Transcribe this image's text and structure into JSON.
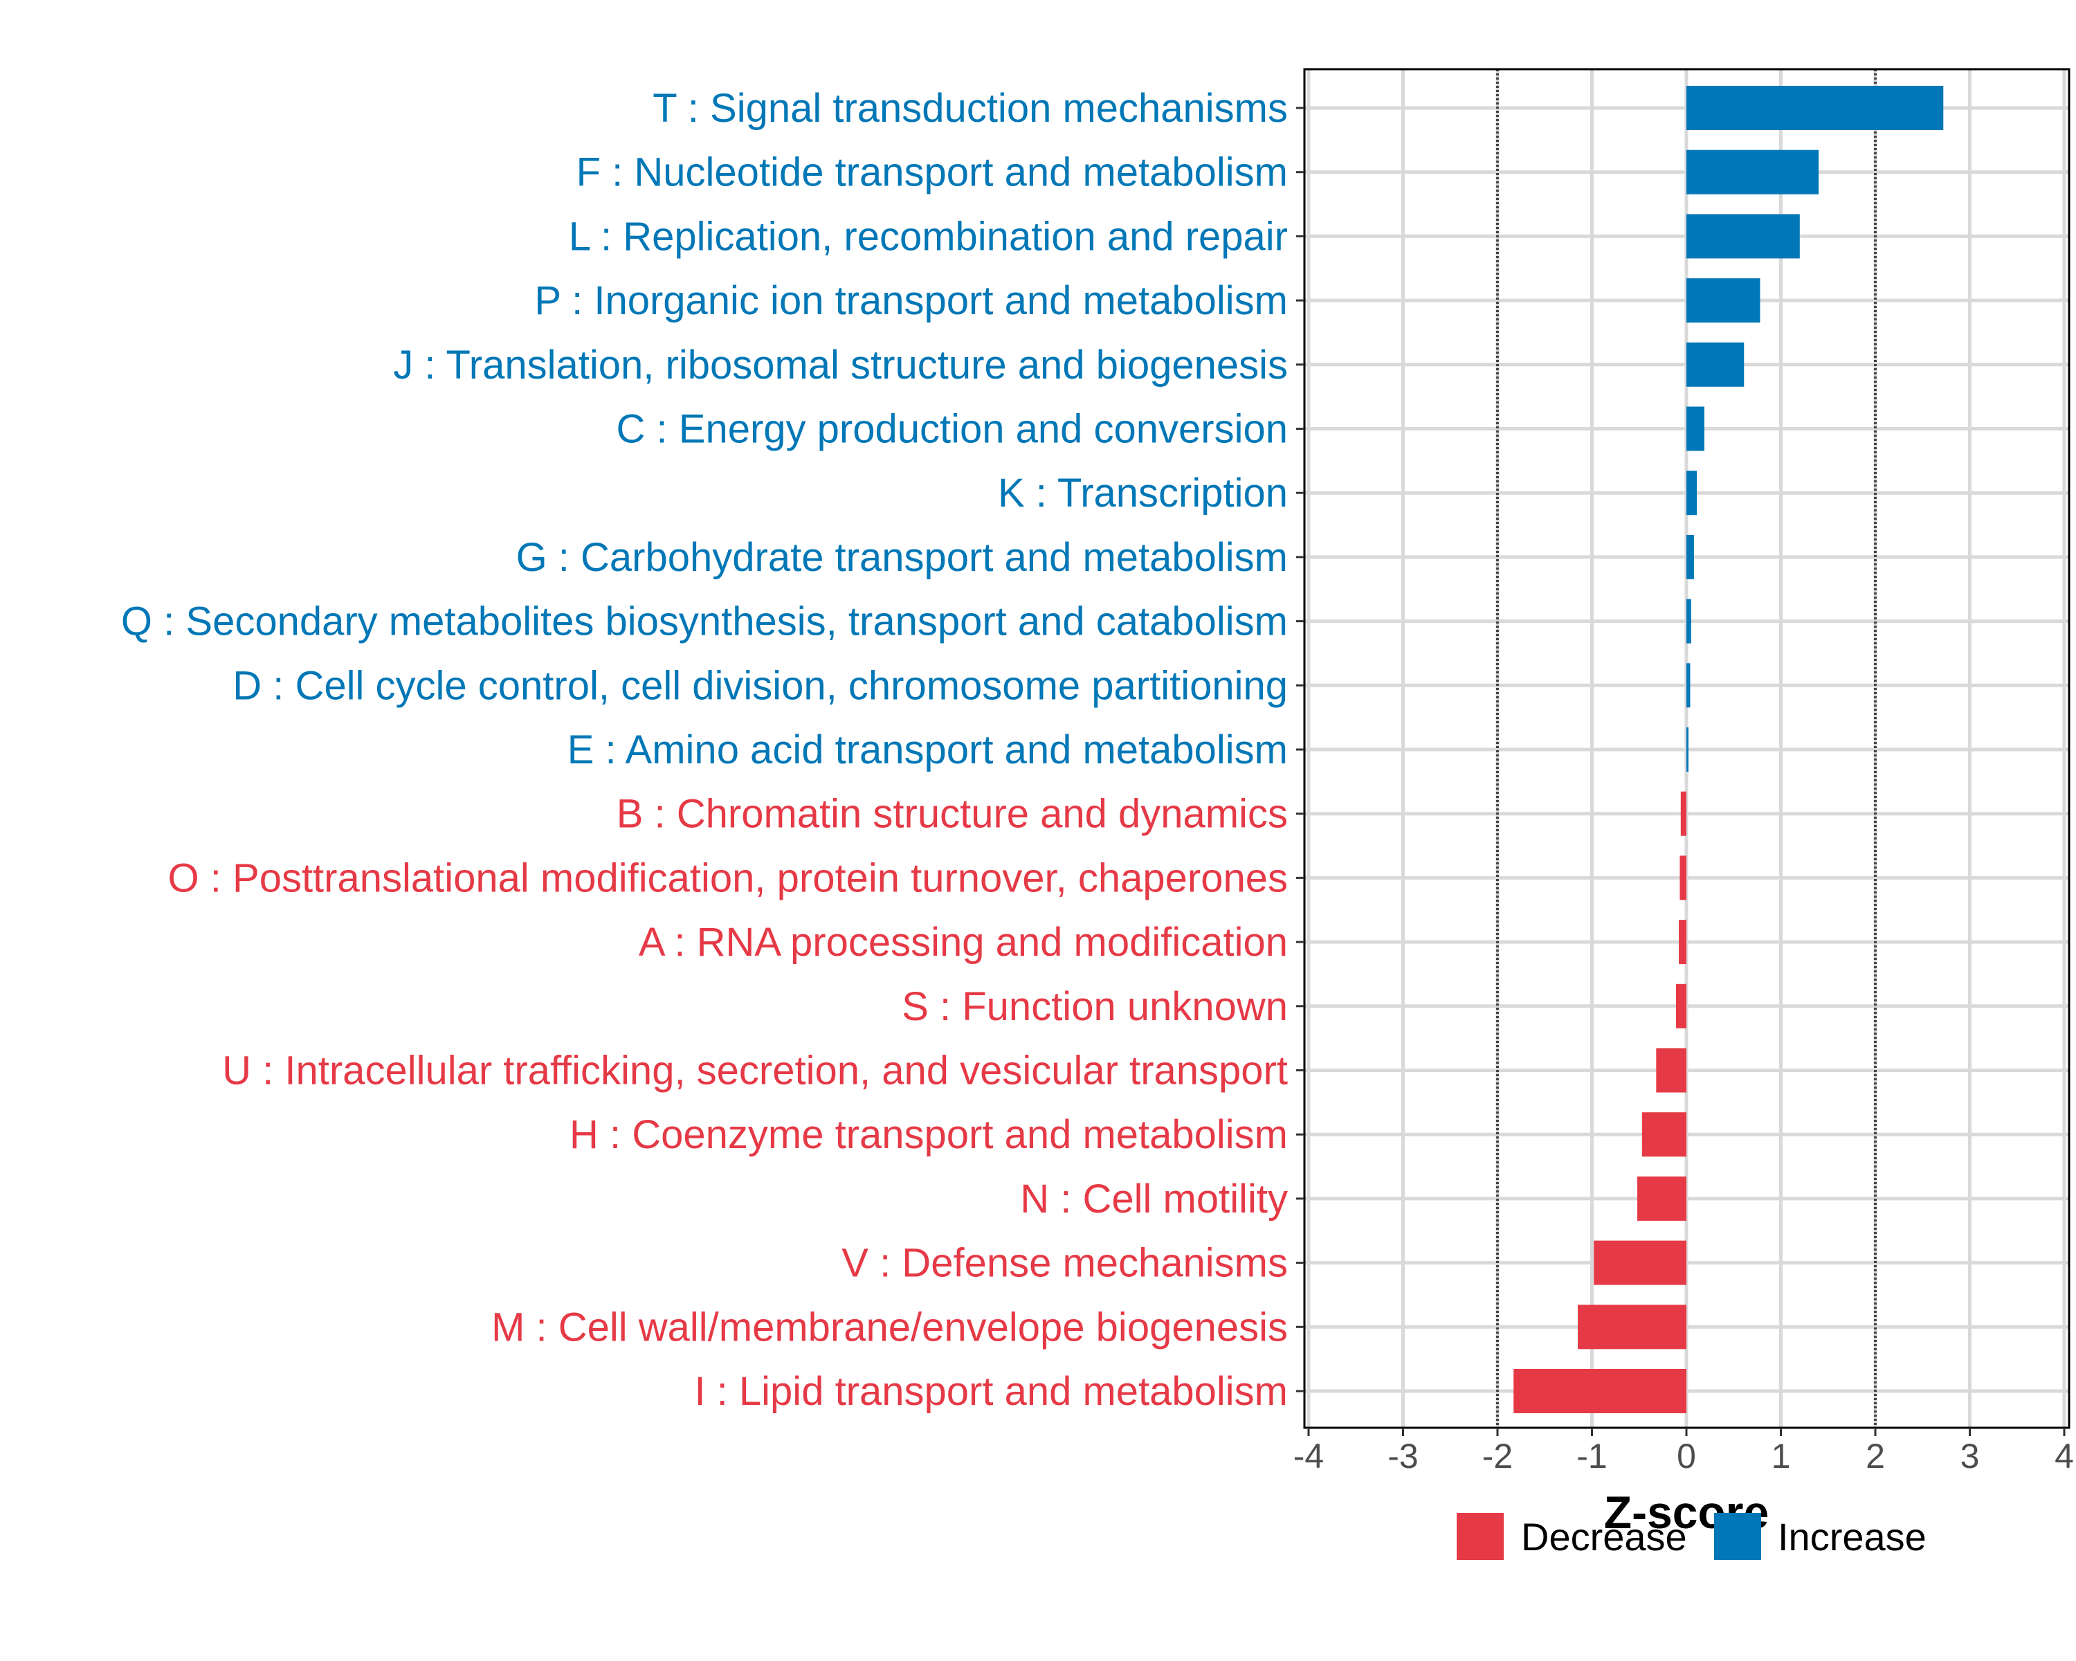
{
  "chart_data": {
    "type": "bar",
    "orientation": "horizontal",
    "xlabel": "Z-score",
    "ylabel": "",
    "xlim": [
      -4,
      4
    ],
    "xticks": [
      "-4",
      "-3",
      "-2",
      "-1",
      "0",
      "1",
      "2",
      "3",
      "4"
    ],
    "reference_lines": [
      -2,
      2
    ],
    "grid": true,
    "legend_position": "bottom",
    "colors": {
      "Decrease": "#E63946",
      "Increase": "#0077B6"
    },
    "legend": [
      {
        "label": "Decrease",
        "color": "#E63946"
      },
      {
        "label": "Increase",
        "color": "#0077B6"
      }
    ],
    "categories": [
      "T : Signal transduction mechanisms",
      "F : Nucleotide transport and metabolism",
      "L : Replication, recombination and repair",
      "P : Inorganic ion transport and metabolism",
      "J : Translation, ribosomal structure and biogenesis",
      "C : Energy production and conversion",
      "K : Transcription",
      "G : Carbohydrate transport and metabolism",
      "Q : Secondary metabolites biosynthesis, transport and catabolism",
      "D : Cell cycle control, cell division, chromosome partitioning",
      "E : Amino acid transport and metabolism",
      "B : Chromatin structure and dynamics",
      "O : Posttranslational modification, protein turnover, chaperones",
      "A : RNA processing and modification",
      "S : Function unknown",
      "U : Intracellular trafficking, secretion, and vesicular transport",
      "H : Coenzyme transport and metabolism",
      "N : Cell motility",
      "V : Defense mechanisms",
      "M : Cell wall/membrane/envelope biogenesis",
      "I : Lipid transport and metabolism"
    ],
    "values": [
      2.72,
      1.4,
      1.2,
      0.78,
      0.61,
      0.19,
      0.11,
      0.08,
      0.05,
      0.04,
      0.02,
      -0.06,
      -0.07,
      -0.08,
      -0.11,
      -0.32,
      -0.47,
      -0.52,
      -0.98,
      -1.15,
      -1.83
    ]
  }
}
